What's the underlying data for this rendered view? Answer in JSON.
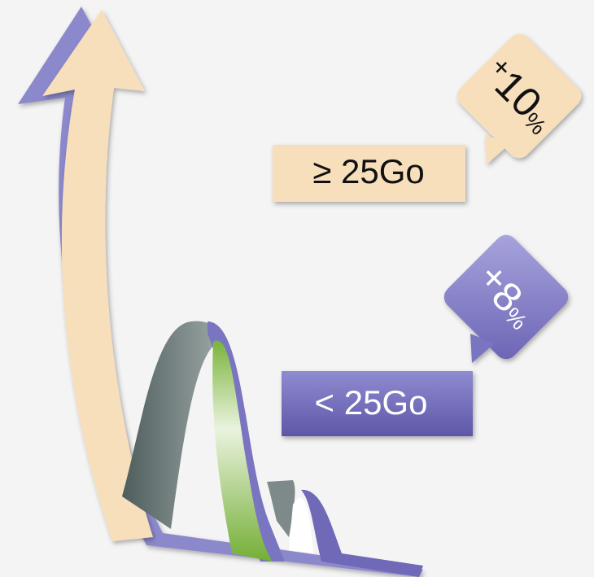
{
  "callouts": [
    {
      "label": "≥ 25Go",
      "badge": {
        "sign": "+",
        "number": "10",
        "unit": "%"
      }
    },
    {
      "label": "< 25Go",
      "badge": {
        "sign": "+",
        "number": "8",
        "unit": "%"
      }
    }
  ]
}
